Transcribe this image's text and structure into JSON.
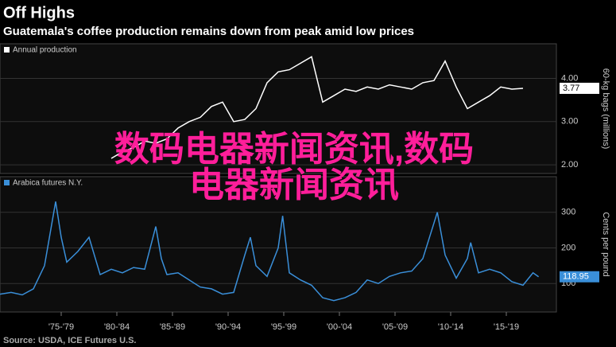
{
  "title": "Off Highs",
  "subtitle": "Guatemala's coffee production remains down from peak amid low prices",
  "source": "Source: USDA, ICE Futures U.S.",
  "overlay_text": "数码电器新闻资讯,数码电器新闻资讯",
  "chart_data": [
    {
      "type": "line",
      "y_label": "60-kg bags (millions)",
      "x": [
        1982,
        1983,
        1984,
        1985,
        1986,
        1987,
        1988,
        1989,
        1990,
        1991,
        1992,
        1993,
        1994,
        1995,
        1996,
        1997,
        1998,
        1999,
        2000,
        2001,
        2002,
        2003,
        2004,
        2005,
        2006,
        2007,
        2008,
        2009,
        2010,
        2011,
        2012,
        2013,
        2014,
        2015,
        2016,
        2017,
        2018,
        2019
      ],
      "series": [
        {
          "name": "Annual production",
          "color": "#ffffff",
          "values": [
            2.15,
            2.3,
            2.4,
            2.55,
            2.5,
            2.6,
            2.85,
            3.0,
            3.1,
            3.35,
            3.45,
            3.0,
            3.05,
            3.3,
            3.9,
            4.15,
            4.2,
            4.35,
            4.5,
            3.45,
            3.6,
            3.75,
            3.7,
            3.8,
            3.75,
            3.85,
            3.8,
            3.75,
            3.9,
            3.95,
            4.4,
            3.8,
            3.3,
            3.45,
            3.6,
            3.8,
            3.75,
            3.77
          ]
        }
      ],
      "xlim": [
        1972,
        2022
      ],
      "ylim": [
        1.8,
        4.8
      ],
      "yticks": [
        {
          "value": 2,
          "label": "2.00"
        },
        {
          "value": 3,
          "label": "3.00"
        },
        {
          "value": 4,
          "label": "4.00"
        }
      ],
      "grid": true
    },
    {
      "type": "line",
      "y_label": "Cents per pound",
      "x": [
        1972,
        1973,
        1974,
        1975,
        1976,
        1977,
        1977.5,
        1978,
        1979,
        1980,
        1981,
        1982,
        1983,
        1984,
        1985,
        1986,
        1986.5,
        1987,
        1988,
        1989,
        1990,
        1991,
        1992,
        1993,
        1994,
        1994.5,
        1995,
        1996,
        1997,
        1997.4,
        1998,
        1999,
        2000,
        2001,
        2002,
        2003,
        2004,
        2005,
        2006,
        2007,
        2008,
        2009,
        2010,
        2011,
        2011.3,
        2012,
        2013,
        2014,
        2014.3,
        2015,
        2016,
        2017,
        2018,
        2019,
        2019.9,
        2020.4
      ],
      "series": [
        {
          "name": "Arabica futures N.Y.",
          "color": "#3a8fd9",
          "values": [
            70,
            75,
            68,
            85,
            150,
            330,
            230,
            160,
            190,
            230,
            125,
            140,
            130,
            145,
            140,
            260,
            170,
            125,
            130,
            110,
            90,
            85,
            70,
            75,
            180,
            230,
            150,
            120,
            200,
            290,
            130,
            110,
            95,
            60,
            52,
            60,
            75,
            110,
            100,
            120,
            130,
            135,
            170,
            270,
            300,
            180,
            115,
            170,
            215,
            130,
            140,
            130,
            105,
            95,
            130,
            118.95
          ]
        }
      ],
      "xlim": [
        1972,
        2022
      ],
      "ylim": [
        20,
        400
      ],
      "yticks": [
        100,
        200,
        300
      ],
      "xticks": [
        {
          "value": 1977.5,
          "label": "'75-'79"
        },
        {
          "value": 1982.5,
          "label": "'80-'84"
        },
        {
          "value": 1987.5,
          "label": "'85-'89"
        },
        {
          "value": 1992.5,
          "label": "'90-'94"
        },
        {
          "value": 1997.5,
          "label": "'95-'99"
        },
        {
          "value": 2002.5,
          "label": "'00-'04"
        },
        {
          "value": 2007.5,
          "label": "'05-'09"
        },
        {
          "value": 2012.5,
          "label": "'10-'14"
        },
        {
          "value": 2017.5,
          "label": "'15-'19"
        }
      ],
      "grid": true
    }
  ]
}
